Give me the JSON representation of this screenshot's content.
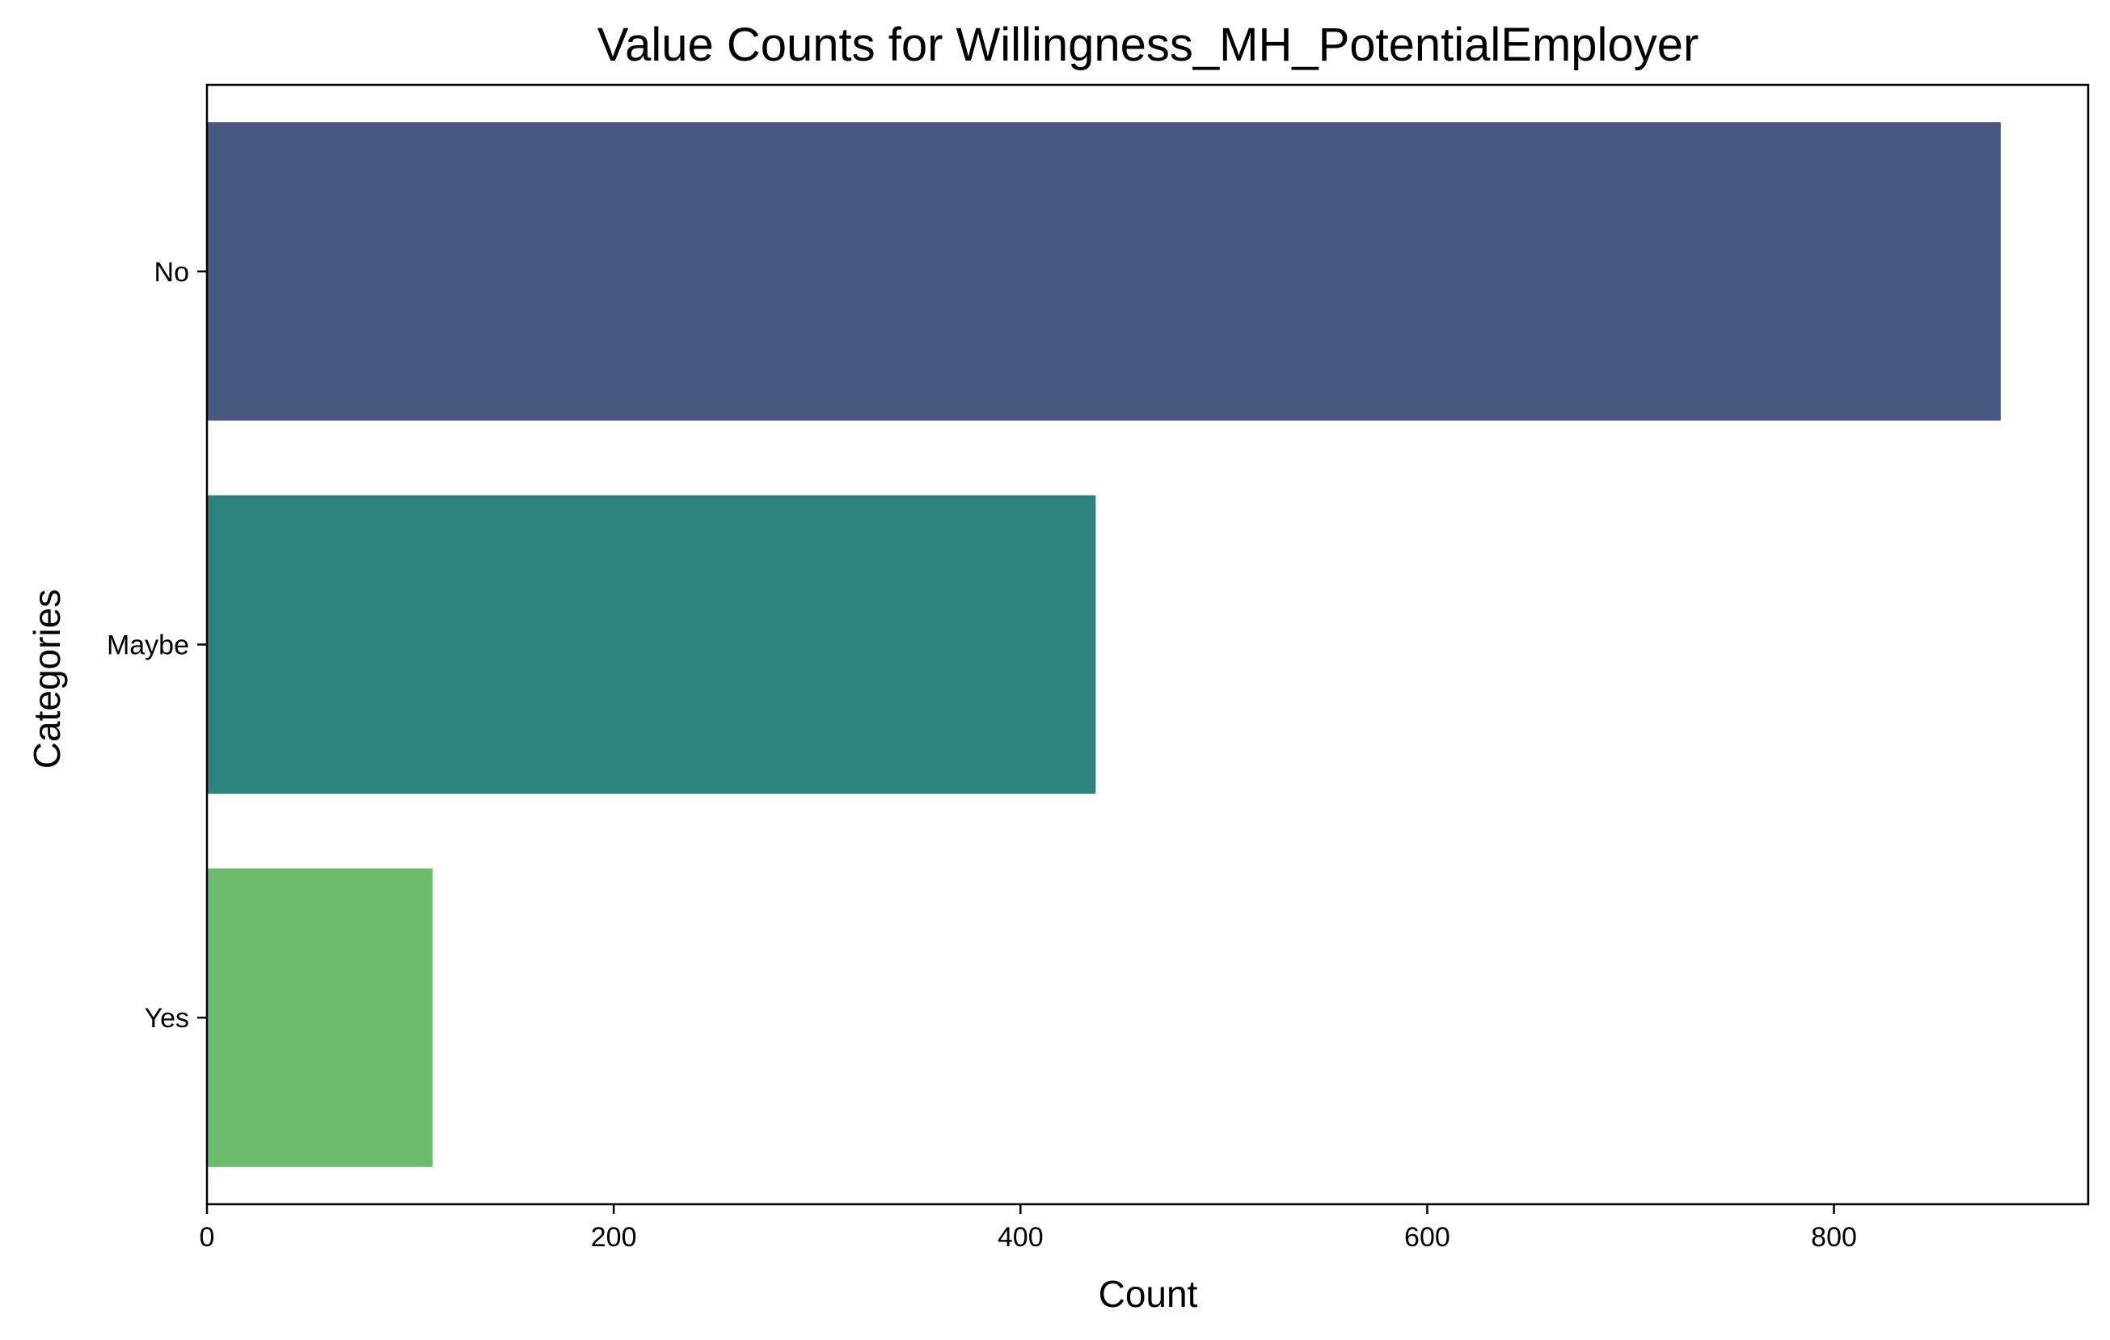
{
  "chart_data": {
    "type": "bar",
    "orientation": "horizontal",
    "title": "Value Counts for Willingness_MH_PotentialEmployer",
    "xlabel": "Count",
    "ylabel": "Categories",
    "categories": [
      "No",
      "Maybe",
      "Yes"
    ],
    "values": [
      882,
      437,
      111
    ],
    "colors": [
      "#46587f",
      "#2e837c",
      "#6cbb6d"
    ],
    "xlim": [
      0,
      925
    ],
    "xticks": [
      0,
      200,
      400,
      600,
      800
    ],
    "grid": false,
    "legend": "none"
  }
}
